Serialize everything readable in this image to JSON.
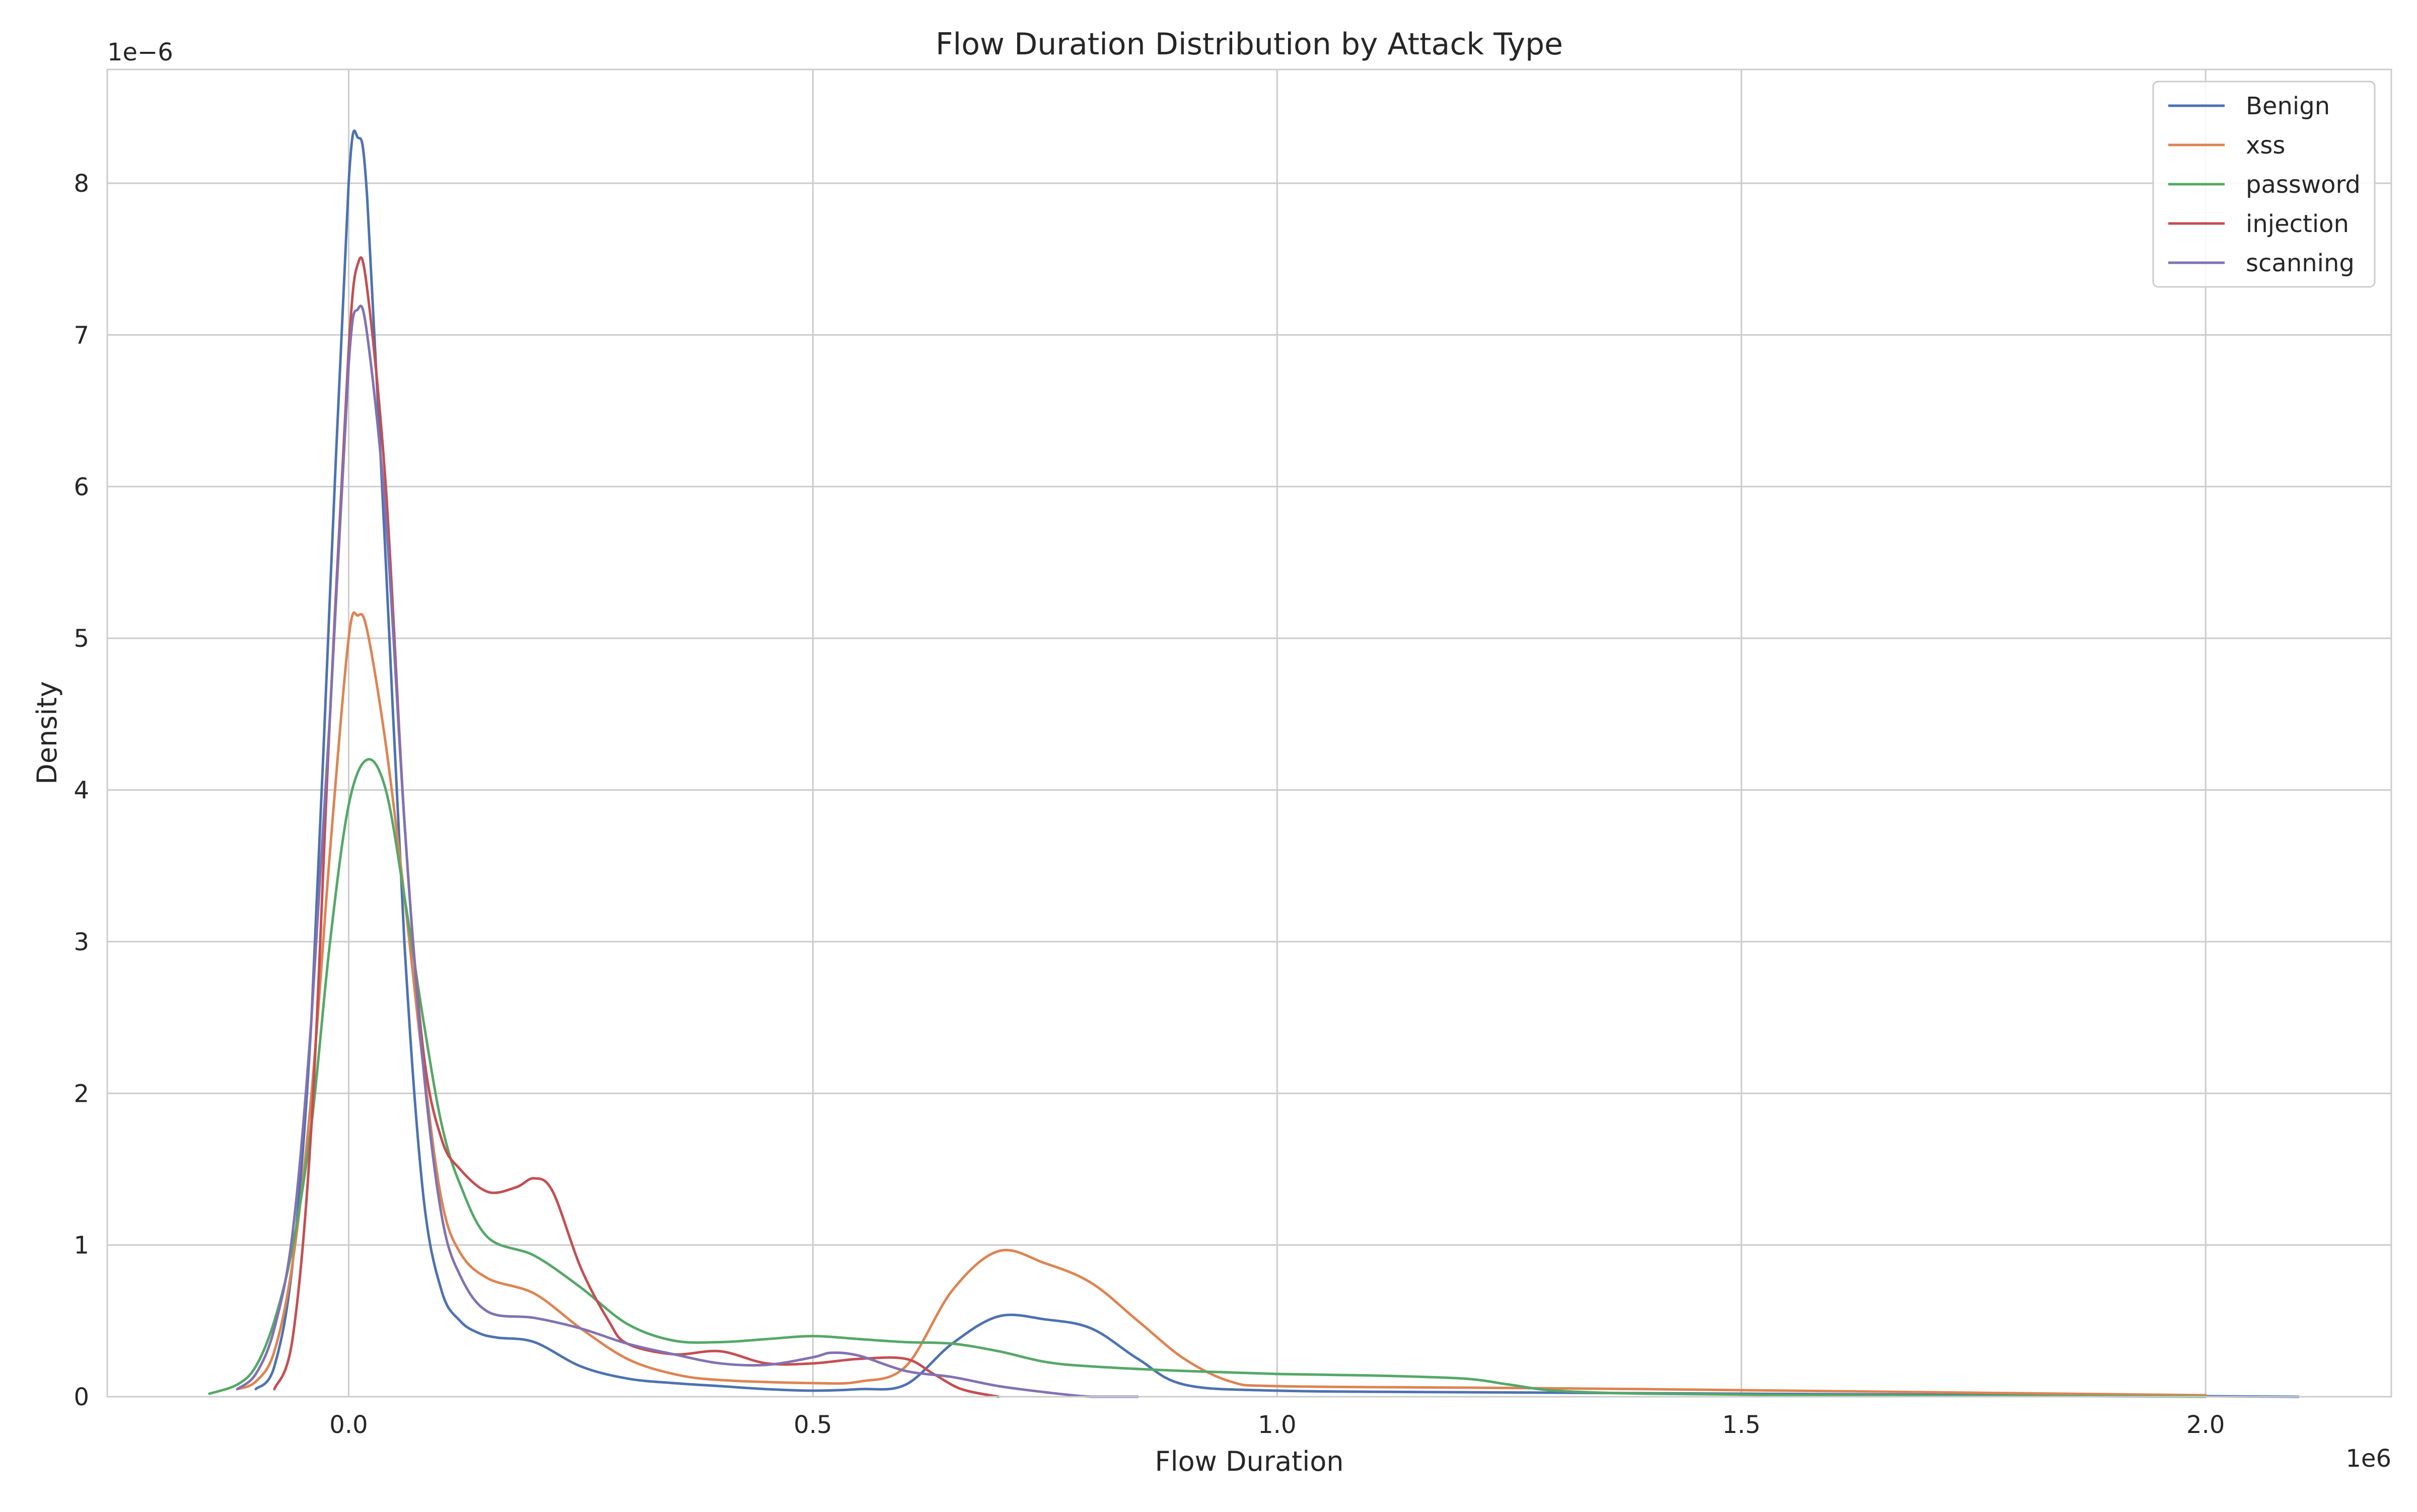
{
  "chart_data": {
    "type": "line",
    "title": "Flow Duration Distribution by Attack Type",
    "xlabel": "Flow Duration",
    "ylabel": "Density",
    "x_offset_label": "1e6",
    "y_offset_label": "1e−6",
    "xlim": [
      -0.26,
      2.2
    ],
    "ylim": [
      0,
      8.75
    ],
    "x_ticks": [
      0.0,
      0.5,
      1.0,
      1.5,
      2.0
    ],
    "x_tick_labels": [
      "0.0",
      "0.5",
      "1.0",
      "1.5",
      "2.0"
    ],
    "y_ticks": [
      0,
      1,
      2,
      3,
      4,
      5,
      6,
      7,
      8
    ],
    "y_tick_labels": [
      "0",
      "1",
      "2",
      "3",
      "4",
      "5",
      "6",
      "7",
      "8"
    ],
    "grid": true,
    "legend_position": "top-right",
    "series": [
      {
        "name": "Benign",
        "color": "#4c72b0",
        "x": [
          -0.1,
          -0.08,
          -0.06,
          -0.04,
          -0.02,
          0.0,
          0.01,
          0.02,
          0.04,
          0.06,
          0.08,
          0.1,
          0.12,
          0.14,
          0.16,
          0.2,
          0.25,
          0.3,
          0.35,
          0.4,
          0.45,
          0.5,
          0.55,
          0.6,
          0.65,
          0.7,
          0.75,
          0.8,
          0.85,
          0.9,
          1.0,
          1.2,
          1.5,
          1.8,
          2.1
        ],
        "y": [
          0.05,
          0.2,
          0.9,
          2.5,
          5.3,
          8.0,
          8.3,
          7.9,
          5.5,
          3.0,
          1.35,
          0.7,
          0.5,
          0.42,
          0.39,
          0.36,
          0.2,
          0.12,
          0.09,
          0.07,
          0.05,
          0.04,
          0.05,
          0.08,
          0.35,
          0.53,
          0.51,
          0.45,
          0.25,
          0.08,
          0.04,
          0.03,
          0.02,
          0.01,
          0.0
        ]
      },
      {
        "name": "xss",
        "color": "#dd8452",
        "x": [
          -0.12,
          -0.1,
          -0.08,
          -0.06,
          -0.04,
          -0.02,
          0.0,
          0.01,
          0.02,
          0.04,
          0.06,
          0.08,
          0.1,
          0.12,
          0.15,
          0.2,
          0.25,
          0.3,
          0.35,
          0.4,
          0.5,
          0.55,
          0.6,
          0.65,
          0.7,
          0.75,
          0.8,
          0.85,
          0.9,
          0.95,
          1.0,
          1.2,
          1.4,
          1.7,
          2.0
        ],
        "y": [
          0.05,
          0.1,
          0.3,
          0.9,
          2.0,
          3.6,
          5.0,
          5.15,
          5.05,
          4.3,
          3.3,
          2.2,
          1.3,
          0.95,
          0.78,
          0.68,
          0.45,
          0.25,
          0.15,
          0.11,
          0.09,
          0.1,
          0.2,
          0.7,
          0.96,
          0.88,
          0.75,
          0.5,
          0.25,
          0.1,
          0.07,
          0.06,
          0.05,
          0.03,
          0.01
        ]
      },
      {
        "name": "password",
        "color": "#55a868",
        "x": [
          -0.15,
          -0.12,
          -0.1,
          -0.08,
          -0.06,
          -0.04,
          -0.02,
          0.0,
          0.02,
          0.04,
          0.06,
          0.08,
          0.1,
          0.12,
          0.15,
          0.2,
          0.25,
          0.3,
          0.35,
          0.4,
          0.45,
          0.5,
          0.55,
          0.6,
          0.65,
          0.7,
          0.75,
          0.8,
          0.9,
          1.0,
          1.1,
          1.2,
          1.25,
          1.3,
          1.4,
          1.6,
          1.8,
          2.0
        ],
        "y": [
          0.02,
          0.08,
          0.2,
          0.5,
          1.0,
          1.8,
          3.0,
          3.9,
          4.2,
          4.0,
          3.3,
          2.5,
          1.8,
          1.4,
          1.05,
          0.93,
          0.72,
          0.48,
          0.37,
          0.36,
          0.38,
          0.4,
          0.38,
          0.36,
          0.35,
          0.3,
          0.23,
          0.2,
          0.17,
          0.15,
          0.14,
          0.12,
          0.08,
          0.04,
          0.02,
          0.01,
          0.005,
          0.0
        ]
      },
      {
        "name": "injection",
        "color": "#c44e52",
        "x": [
          -0.08,
          -0.06,
          -0.04,
          -0.02,
          0.0,
          0.01,
          0.02,
          0.04,
          0.06,
          0.08,
          0.1,
          0.12,
          0.15,
          0.18,
          0.2,
          0.22,
          0.25,
          0.28,
          0.3,
          0.35,
          0.4,
          0.45,
          0.5,
          0.55,
          0.6,
          0.63,
          0.66,
          0.7
        ],
        "y": [
          0.05,
          0.4,
          1.8,
          4.5,
          6.9,
          7.47,
          7.3,
          6.0,
          3.8,
          2.3,
          1.7,
          1.5,
          1.35,
          1.38,
          1.44,
          1.35,
          0.85,
          0.5,
          0.35,
          0.28,
          0.3,
          0.22,
          0.22,
          0.25,
          0.25,
          0.15,
          0.05,
          0.0
        ]
      },
      {
        "name": "scanning",
        "color": "#8172b2",
        "x": [
          -0.12,
          -0.1,
          -0.08,
          -0.06,
          -0.04,
          -0.02,
          0.0,
          0.01,
          0.02,
          0.04,
          0.06,
          0.08,
          0.1,
          0.12,
          0.15,
          0.2,
          0.25,
          0.3,
          0.35,
          0.4,
          0.45,
          0.5,
          0.52,
          0.55,
          0.6,
          0.65,
          0.7,
          0.75,
          0.8,
          0.85
        ],
        "y": [
          0.05,
          0.15,
          0.45,
          1.1,
          2.5,
          4.5,
          6.8,
          7.17,
          7.0,
          5.8,
          3.8,
          2.2,
          1.2,
          0.8,
          0.56,
          0.52,
          0.45,
          0.35,
          0.28,
          0.22,
          0.21,
          0.26,
          0.29,
          0.27,
          0.17,
          0.13,
          0.07,
          0.03,
          0.0,
          0.0
        ]
      }
    ]
  }
}
